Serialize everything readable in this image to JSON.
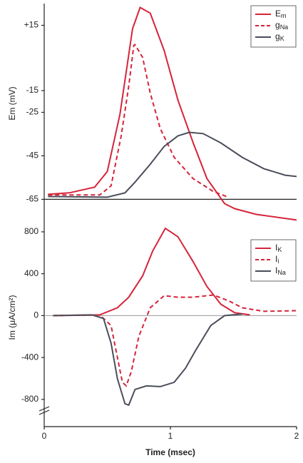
{
  "chart_data": [
    {
      "type": "line",
      "y_label": "Em (mV)",
      "xlim": [
        0,
        2
      ],
      "ylim": [
        -77,
        25
      ],
      "yticks": [
        {
          "value": 15,
          "label": "+15"
        },
        -15,
        -25,
        -45,
        -65
      ],
      "hline": -65,
      "legend": "top-right",
      "series": [
        {
          "name": "Em",
          "color": "#d6243a",
          "style": "solid",
          "x": [
            0.03,
            0.2,
            0.4,
            0.5,
            0.6,
            0.65,
            0.7,
            0.76,
            0.84,
            0.95,
            1.06,
            1.18,
            1.29,
            1.43,
            1.51,
            1.68,
            2.0
          ],
          "values": [
            -62.7,
            -62,
            -59.4,
            -52.2,
            -26,
            -6.3,
            13.4,
            23.2,
            20.6,
            3.5,
            -19.4,
            -39,
            -55.5,
            -67,
            -69.3,
            -71.9,
            -74.5
          ]
        },
        {
          "name": "gNa",
          "color": "#d6243a",
          "style": "dashed",
          "x": [
            0.03,
            0.44,
            0.53,
            0.61,
            0.67,
            0.71,
            0.72,
            0.78,
            0.84,
            0.92,
            1.03,
            1.18,
            1.34,
            1.46
          ],
          "values": [
            -63,
            -63,
            -58.8,
            -35.8,
            -12.9,
            5.8,
            6.1,
            0.2,
            -16.1,
            -32.5,
            -45.7,
            -55.5,
            -61.4,
            -64
          ]
        },
        {
          "name": "gK",
          "color": "#4a4e5a",
          "style": "solid",
          "x": [
            0.03,
            0.5,
            0.64,
            0.72,
            0.84,
            0.95,
            1.06,
            1.15,
            1.26,
            1.4,
            1.57,
            1.74,
            1.91,
            2.0
          ],
          "values": [
            -63.7,
            -64,
            -62,
            -57.1,
            -48.9,
            -40.7,
            -35.8,
            -34.2,
            -34.8,
            -39.1,
            -45.7,
            -50.9,
            -53.9,
            -54.5
          ]
        }
      ]
    },
    {
      "type": "line",
      "y_label": "Im (μA/cm²)",
      "x_label": "Time (msec)",
      "xlim": [
        0,
        2
      ],
      "xticks": [
        0,
        1,
        2
      ],
      "ylim": [
        -1060,
        970
      ],
      "yticks": [
        800,
        400,
        0,
        -400,
        -800
      ],
      "hline": 0,
      "legend": "top-right",
      "series": [
        {
          "name": "IK",
          "color": "#d6243a",
          "style": "solid",
          "x": [
            0.07,
            0.44,
            0.58,
            0.67,
            0.78,
            0.86,
            0.96,
            1.06,
            1.18,
            1.29,
            1.4,
            1.51,
            1.63
          ],
          "values": [
            0,
            7,
            75,
            176,
            380,
            617,
            834,
            753,
            515,
            278,
            108,
            27,
            7
          ]
        },
        {
          "name": "Ii",
          "color": "#d6243a",
          "style": "dashed",
          "x": [
            0.07,
            0.44,
            0.53,
            0.58,
            0.62,
            0.65,
            0.69,
            0.75,
            0.84,
            0.95,
            1.06,
            1.18,
            1.34,
            1.46,
            1.57,
            1.74,
            2.0
          ],
          "values": [
            0,
            7,
            -95,
            -400,
            -637,
            -671,
            -536,
            -197,
            75,
            190,
            176,
            176,
            197,
            142,
            75,
            41,
            47
          ]
        },
        {
          "name": "INa",
          "color": "#4a4e5a",
          "style": "solid",
          "x": [
            0.07,
            0.38,
            0.47,
            0.53,
            0.58,
            0.64,
            0.67,
            0.72,
            0.81,
            0.92,
            1.03,
            1.12,
            1.2,
            1.32,
            1.43,
            1.57
          ],
          "values": [
            0,
            7,
            -27,
            -264,
            -603,
            -841,
            -854,
            -705,
            -671,
            -678,
            -637,
            -502,
            -332,
            -95,
            0,
            14
          ]
        }
      ]
    }
  ]
}
